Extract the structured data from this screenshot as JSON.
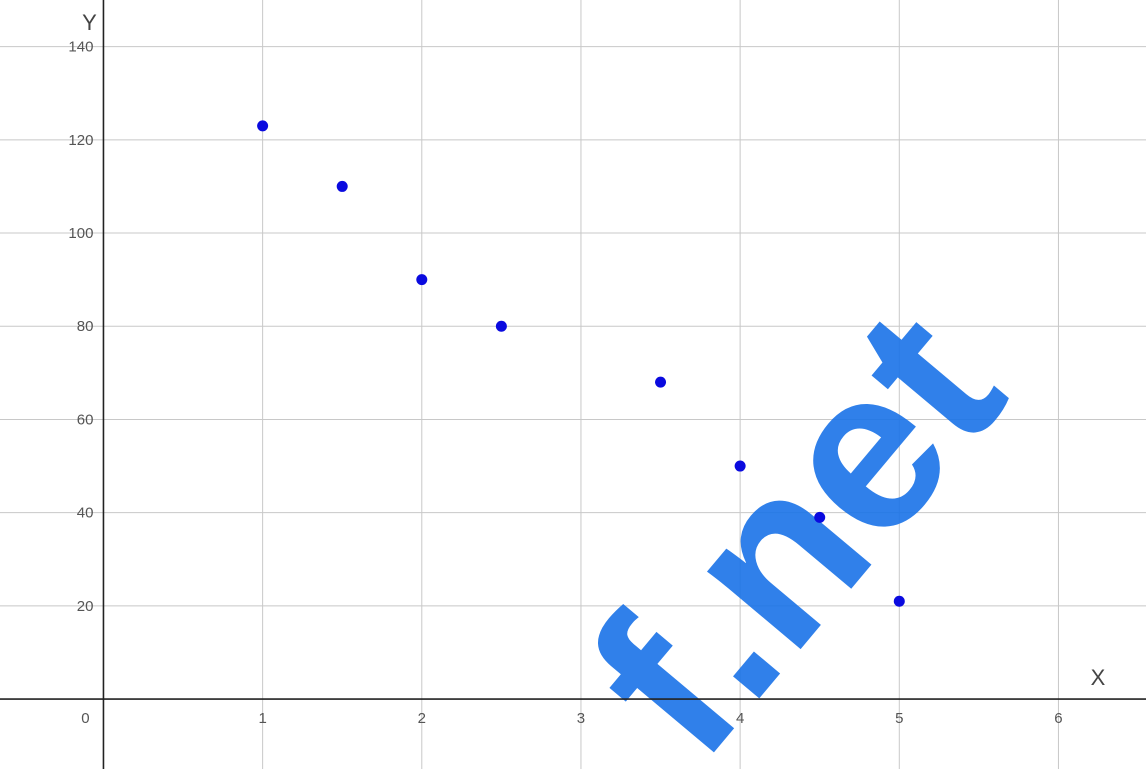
{
  "chart_data": {
    "type": "scatter",
    "title": "",
    "xlabel": "X",
    "ylabel": "Y",
    "xlim": [
      -0.65,
      6.55
    ],
    "ylim": [
      -15,
      150
    ],
    "x_ticks": [
      1,
      2,
      3,
      4,
      5,
      6
    ],
    "y_ticks": [
      20,
      40,
      60,
      80,
      100,
      120,
      140
    ],
    "origin_label": "0",
    "grid": true,
    "marker_color": "#0a0adf",
    "series": [
      {
        "x": [
          1,
          1.5,
          2,
          2.5,
          3.5,
          4,
          4.5,
          5
        ],
        "y": [
          123,
          110,
          90,
          80,
          68,
          50,
          39,
          21
        ]
      }
    ]
  },
  "watermark": {
    "text": "f.net",
    "color": "#1a73e8"
  }
}
